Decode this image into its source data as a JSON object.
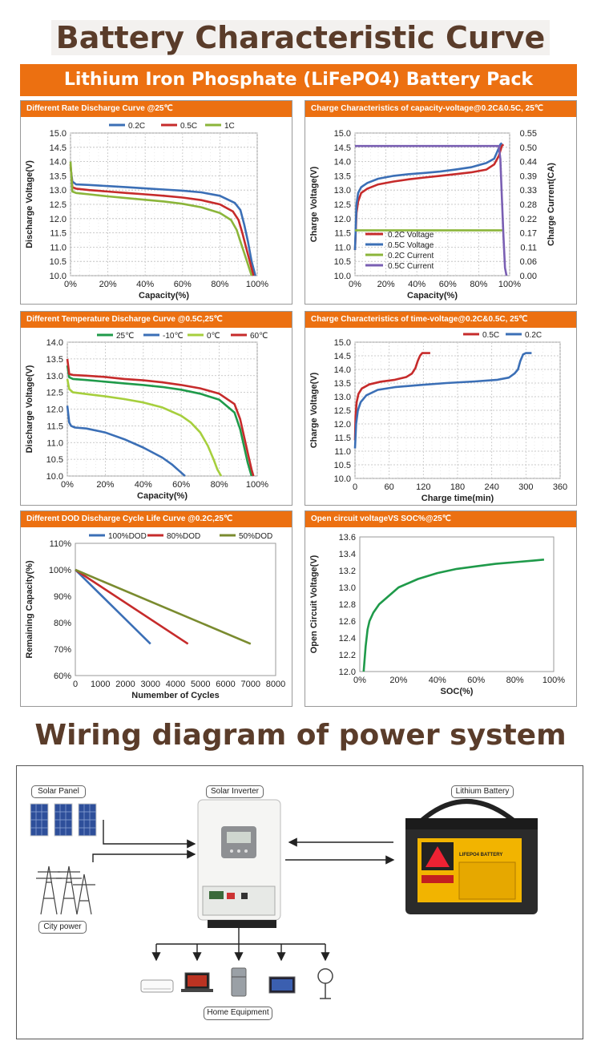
{
  "page": {
    "headline": "Battery Characteristic Curve",
    "banner": "Lithium Iron Phosphate (LiFePO4) Battery Pack",
    "wiring_headline": "Wiring diagram of power system",
    "accent_color": "#ec7011",
    "headline_color": "#5a3c2a"
  },
  "wiring": {
    "solar_panel_label": "Solar Panel",
    "solar_inverter_label": "Solar Inverter",
    "lithium_battery_label": "Lithium Battery",
    "city_power_label": "City power",
    "home_equipment_label": "Home Equipment",
    "battery_brand_text": "LIFEPO4 BATTERY",
    "icons": [
      "solar-panel-icon",
      "power-tower-icon",
      "inverter-icon",
      "battery-icon",
      "air-conditioner-icon",
      "laptop-icon",
      "refrigerator-icon",
      "tv-icon",
      "fan-icon"
    ]
  },
  "chart_data": [
    {
      "id": "c1",
      "type": "line",
      "title": "Different Rate Discharge Curve @25℃",
      "xlabel": "Capacity(%)",
      "ylabel": "Discharge Voltage(V)",
      "xlim": [
        0,
        100
      ],
      "ylim": [
        10.0,
        15.0
      ],
      "xticks": [
        0,
        20,
        40,
        60,
        80,
        100
      ],
      "xtick_labels": [
        "0%",
        "20%",
        "40%",
        "60%",
        "80%",
        "100%"
      ],
      "yticks": [
        10.0,
        10.5,
        11.0,
        11.5,
        12.0,
        12.5,
        13.0,
        13.5,
        14.0,
        14.5,
        15.0
      ],
      "ytick_labels": [
        "10.0",
        "10.5",
        "11.0",
        "11.5",
        "12.0",
        "12.5",
        "13.0",
        "13.5",
        "14.0",
        "14.5",
        "15.0"
      ],
      "grid": "dashed",
      "legend": "top",
      "series": [
        {
          "name": "0.2C",
          "color": "#3b6fb6",
          "x": [
            0,
            1,
            3,
            10,
            20,
            30,
            40,
            50,
            60,
            70,
            80,
            88,
            91,
            93,
            95,
            97,
            99
          ],
          "y": [
            13.8,
            13.3,
            13.2,
            13.18,
            13.14,
            13.1,
            13.06,
            13.02,
            12.98,
            12.92,
            12.8,
            12.55,
            12.3,
            11.8,
            11.2,
            10.5,
            10.0
          ]
        },
        {
          "name": "0.5C",
          "color": "#c62b2b",
          "x": [
            0,
            1,
            3,
            10,
            20,
            30,
            40,
            50,
            60,
            70,
            80,
            87,
            90,
            92,
            94,
            96,
            98
          ],
          "y": [
            13.9,
            13.1,
            13.05,
            13.0,
            12.95,
            12.9,
            12.85,
            12.8,
            12.74,
            12.65,
            12.5,
            12.25,
            11.95,
            11.5,
            11.0,
            10.5,
            10.0
          ]
        },
        {
          "name": "1C",
          "color": "#8bb53a",
          "x": [
            0,
            1,
            3,
            10,
            20,
            30,
            40,
            50,
            60,
            70,
            80,
            86,
            89,
            91,
            93,
            95,
            97
          ],
          "y": [
            14.0,
            12.95,
            12.9,
            12.85,
            12.78,
            12.72,
            12.66,
            12.6,
            12.52,
            12.4,
            12.2,
            11.95,
            11.6,
            11.2,
            10.8,
            10.4,
            10.0
          ]
        }
      ]
    },
    {
      "id": "c2",
      "type": "line",
      "title": "Charge Characteristics of capacity-voltage@0.2C&0.5C, 25℃",
      "xlabel": "Capacity(%)",
      "ylabel": "Charge Voltage(V)",
      "y2label": "Charge Current(CA)",
      "xlim": [
        0,
        100
      ],
      "ylim": [
        10.0,
        15.0
      ],
      "y2lim": [
        0.0,
        0.55
      ],
      "xticks": [
        0,
        20,
        40,
        60,
        80,
        100
      ],
      "xtick_labels": [
        "0%",
        "20%",
        "40%",
        "60%",
        "80%",
        "100%"
      ],
      "yticks": [
        10.0,
        10.5,
        11.0,
        11.5,
        12.0,
        12.5,
        13.0,
        13.5,
        14.0,
        14.5,
        15.0
      ],
      "ytick_labels": [
        "10.0",
        "10.5",
        "11.0",
        "11.5",
        "12.0",
        "12.5",
        "13.0",
        "13.5",
        "14.0",
        "14.5",
        "15.0"
      ],
      "y2ticks": [
        0.0,
        0.055,
        0.11,
        0.165,
        0.22,
        0.275,
        0.33,
        0.385,
        0.44,
        0.495,
        0.55
      ],
      "y2tick_labels": [
        "0.00",
        "0.06",
        "0.11",
        "0.17",
        "0.22",
        "0.28",
        "0.33",
        "0.39",
        "0.44",
        "0.50",
        "0.55"
      ],
      "grid": "dashed",
      "legend": "lower-left",
      "series": [
        {
          "name": "0.2C Voltage",
          "color": "#c62b2b",
          "axis": "y",
          "x": [
            0,
            1,
            2,
            4,
            8,
            15,
            25,
            35,
            45,
            55,
            65,
            75,
            85,
            90,
            93,
            95,
            96
          ],
          "y": [
            10.9,
            12.2,
            12.6,
            12.9,
            13.05,
            13.2,
            13.3,
            13.38,
            13.44,
            13.5,
            13.56,
            13.62,
            13.72,
            13.9,
            14.2,
            14.55,
            14.6
          ]
        },
        {
          "name": "0.5C Voltage",
          "color": "#3b6fb6",
          "axis": "y",
          "x": [
            0,
            1,
            2,
            4,
            8,
            15,
            25,
            35,
            45,
            55,
            65,
            75,
            85,
            90,
            92,
            94,
            95
          ],
          "y": [
            10.9,
            12.5,
            12.9,
            13.1,
            13.25,
            13.4,
            13.5,
            13.56,
            13.6,
            13.65,
            13.72,
            13.8,
            13.95,
            14.1,
            14.35,
            14.6,
            14.65
          ]
        },
        {
          "name": "0.2C Current",
          "color": "#8bb53a",
          "axis": "y2",
          "x": [
            0,
            96
          ],
          "y": [
            0.175,
            0.175
          ]
        },
        {
          "name": "0.5C Current",
          "color": "#7a5fb3",
          "axis": "y2",
          "x": [
            0,
            93,
            94,
            95,
            96,
            97,
            98
          ],
          "y": [
            0.5,
            0.5,
            0.45,
            0.3,
            0.15,
            0.03,
            0.0
          ]
        }
      ]
    },
    {
      "id": "c3",
      "type": "line",
      "title": "Different Temperature Discharge Curve @0.5C,25℃",
      "xlabel": "Capacity(%)",
      "ylabel": "Discharge Voltage(V)",
      "xlim": [
        0,
        100
      ],
      "ylim": [
        10.0,
        14.0
      ],
      "xticks": [
        0,
        20,
        40,
        60,
        80,
        100
      ],
      "xtick_labels": [
        "0%",
        "20%",
        "40%",
        "60%",
        "80%",
        "100%"
      ],
      "yticks": [
        10.0,
        10.5,
        11.0,
        11.5,
        12.0,
        12.5,
        13.0,
        13.5,
        14.0
      ],
      "ytick_labels": [
        "10.0",
        "10.5",
        "11.0",
        "11.5",
        "12.0",
        "12.5",
        "13.0",
        "13.5",
        "14.0"
      ],
      "grid": "dashed",
      "legend": "top",
      "series": [
        {
          "name": "25℃",
          "color": "#1f9a4a",
          "x": [
            0,
            1,
            3,
            10,
            20,
            30,
            40,
            50,
            60,
            70,
            80,
            88,
            91,
            93,
            95,
            97
          ],
          "y": [
            13.3,
            12.95,
            12.9,
            12.87,
            12.82,
            12.77,
            12.72,
            12.66,
            12.58,
            12.46,
            12.28,
            11.9,
            11.4,
            10.9,
            10.4,
            10.0
          ]
        },
        {
          "name": "-10℃",
          "color": "#3b6fb6",
          "x": [
            0,
            1,
            2,
            4,
            10,
            20,
            30,
            40,
            50,
            55,
            58,
            60,
            62
          ],
          "y": [
            12.1,
            11.6,
            11.5,
            11.45,
            11.42,
            11.3,
            11.1,
            10.85,
            10.55,
            10.35,
            10.2,
            10.1,
            10.0
          ]
        },
        {
          "name": "0℃",
          "color": "#a6cf3d",
          "x": [
            0,
            1,
            3,
            10,
            20,
            30,
            40,
            50,
            60,
            65,
            70,
            74,
            77,
            79,
            81
          ],
          "y": [
            12.9,
            12.6,
            12.5,
            12.45,
            12.38,
            12.3,
            12.2,
            12.05,
            11.8,
            11.6,
            11.3,
            10.9,
            10.5,
            10.2,
            10.0
          ]
        },
        {
          "name": "60℃",
          "color": "#c62b2b",
          "x": [
            0,
            1,
            3,
            10,
            20,
            30,
            40,
            50,
            60,
            70,
            80,
            88,
            91,
            93,
            95,
            97,
            98
          ],
          "y": [
            13.5,
            13.05,
            13.02,
            13.0,
            12.96,
            12.9,
            12.86,
            12.8,
            12.72,
            12.62,
            12.46,
            12.15,
            11.7,
            11.2,
            10.7,
            10.2,
            10.0
          ]
        }
      ]
    },
    {
      "id": "c4",
      "type": "line",
      "title": "Charge Characteristics of time-voltage@0.2C&0.5C, 25℃",
      "xlabel": "Charge time(min)",
      "ylabel": "Charge Voltage(V)",
      "xlim": [
        0,
        360
      ],
      "ylim": [
        10.0,
        15.0
      ],
      "xticks": [
        0,
        60,
        120,
        180,
        240,
        300,
        360
      ],
      "xtick_labels": [
        "0",
        "60",
        "120",
        "180",
        "240",
        "300",
        "360"
      ],
      "yticks": [
        10.0,
        10.5,
        11.0,
        11.5,
        12.0,
        12.5,
        13.0,
        13.5,
        14.0,
        14.5,
        15.0
      ],
      "ytick_labels": [
        "10.0",
        "10.5",
        "11.0",
        "11.5",
        "12.0",
        "12.5",
        "13.0",
        "13.5",
        "14.0",
        "14.5",
        "15.0"
      ],
      "grid": "dashed",
      "legend": "top-right",
      "series": [
        {
          "name": "0.5C",
          "color": "#c62b2b",
          "x": [
            0,
            1,
            3,
            6,
            12,
            25,
            45,
            70,
            90,
            100,
            106,
            110,
            114,
            118,
            122,
            132
          ],
          "y": [
            11.4,
            12.3,
            12.8,
            13.1,
            13.3,
            13.45,
            13.55,
            13.62,
            13.72,
            13.85,
            14.05,
            14.3,
            14.5,
            14.6,
            14.6,
            14.6
          ]
        },
        {
          "name": "0.2C",
          "color": "#3b6fb6",
          "x": [
            0,
            2,
            5,
            10,
            20,
            40,
            70,
            110,
            160,
            210,
            250,
            270,
            280,
            286,
            290,
            295,
            300,
            310
          ],
          "y": [
            11.1,
            12.0,
            12.5,
            12.8,
            13.05,
            13.25,
            13.35,
            13.42,
            13.5,
            13.56,
            13.62,
            13.7,
            13.85,
            14.0,
            14.3,
            14.55,
            14.6,
            14.6
          ]
        }
      ]
    },
    {
      "id": "c5",
      "type": "line",
      "title": "Different DOD Discharge Cycle Life Curve @0.2C,25℃",
      "xlabel": "Numember of Cycles",
      "ylabel": "Remaining Capacity(%)",
      "xlim": [
        0,
        8000
      ],
      "ylim": [
        60,
        110
      ],
      "xticks": [
        0,
        1000,
        2000,
        3000,
        4000,
        5000,
        6000,
        7000,
        8000
      ],
      "xtick_labels": [
        "0",
        "1000",
        "2000",
        "3000",
        "4000",
        "5000",
        "6000",
        "7000",
        "8000"
      ],
      "yticks": [
        60,
        70,
        80,
        90,
        100,
        110
      ],
      "ytick_labels": [
        "60%",
        "70%",
        "80%",
        "90%",
        "100%",
        "110%"
      ],
      "grid": "none",
      "legend": "top",
      "series": [
        {
          "name": "100%DOD",
          "color": "#3b6fb6",
          "x": [
            0,
            3000
          ],
          "y": [
            100,
            72
          ]
        },
        {
          "name": "80%DOD",
          "color": "#c62b2b",
          "x": [
            0,
            4500
          ],
          "y": [
            100,
            72
          ]
        },
        {
          "name": "50%DOD",
          "color": "#7a8b2f",
          "x": [
            0,
            7000
          ],
          "y": [
            100,
            72
          ]
        }
      ]
    },
    {
      "id": "c6",
      "type": "line",
      "title": "Open circuit voltageVS SOC%@25℃",
      "xlabel": "SOC(%)",
      "ylabel": "Open Circuit Voltage(V)",
      "xlim": [
        0,
        100
      ],
      "ylim": [
        12.0,
        13.6
      ],
      "xticks": [
        0,
        20,
        40,
        60,
        80,
        100
      ],
      "xtick_labels": [
        "0%",
        "20%",
        "40%",
        "60%",
        "80%",
        "100%"
      ],
      "yticks": [
        12.0,
        12.2,
        12.4,
        12.6,
        12.8,
        13.0,
        13.2,
        13.4,
        13.6
      ],
      "ytick_labels": [
        "12.0",
        "12.2",
        "12.4",
        "12.6",
        "12.8",
        "13.0",
        "13.2",
        "13.4",
        "13.6"
      ],
      "grid": "none",
      "legend": "none",
      "series": [
        {
          "name": "",
          "color": "#1f9a4a",
          "x": [
            2,
            3,
            4,
            5,
            7,
            10,
            15,
            20,
            30,
            40,
            50,
            60,
            70,
            80,
            90,
            95
          ],
          "y": [
            12.0,
            12.3,
            12.5,
            12.6,
            12.7,
            12.8,
            12.9,
            13.0,
            13.1,
            13.17,
            13.22,
            13.25,
            13.28,
            13.3,
            13.32,
            13.33
          ]
        }
      ]
    }
  ]
}
